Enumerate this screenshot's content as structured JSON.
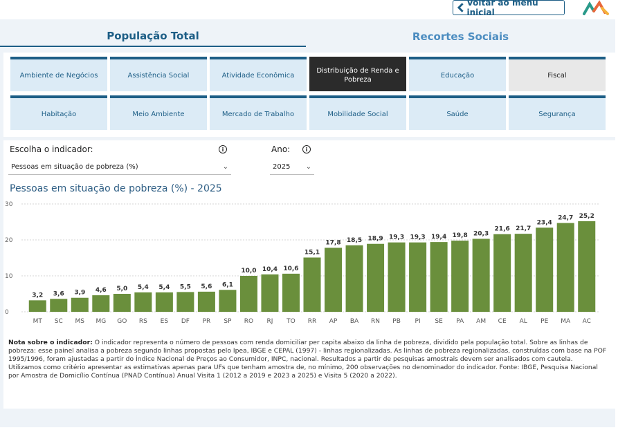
{
  "header": {
    "back_label": "Voltar ao menu inicial",
    "colors": {
      "primary": "#1d5e86",
      "bar": "#6a8f3c"
    }
  },
  "tabs": {
    "pop_label": "População Total",
    "rec_label": "Recortes Sociais"
  },
  "categories": [
    {
      "label": "Ambiente de Negócios"
    },
    {
      "label": "Assistência Social"
    },
    {
      "label": "Atividade Econômica"
    },
    {
      "label": "Distribuição de Renda e Pobreza",
      "selected": true
    },
    {
      "label": "Educação"
    },
    {
      "label": "Fiscal"
    },
    {
      "label": "Habitação"
    },
    {
      "label": "Meio Ambiente"
    },
    {
      "label": "Mercado de Trabalho"
    },
    {
      "label": "Mobilidade Social"
    },
    {
      "label": "Saúde"
    },
    {
      "label": "Segurança"
    }
  ],
  "filters": {
    "indicator_label": "Escolha o indicador:",
    "indicator_value": "Pessoas em situação de pobreza (%)",
    "year_label": "Ano:",
    "year_value": "2025"
  },
  "chart_data": {
    "type": "bar",
    "title": "Pessoas em situação de pobreza (%) - 2025",
    "categories": [
      "MT",
      "SC",
      "MS",
      "MG",
      "GO",
      "RS",
      "ES",
      "DF",
      "PR",
      "SP",
      "RO",
      "RJ",
      "TO",
      "RR",
      "AP",
      "BA",
      "RN",
      "PB",
      "PI",
      "SE",
      "PA",
      "AM",
      "CE",
      "AL",
      "PE",
      "MA",
      "AC"
    ],
    "values": [
      3.2,
      3.6,
      3.9,
      4.6,
      5.0,
      5.4,
      5.4,
      5.5,
      5.6,
      6.1,
      10.0,
      10.4,
      10.6,
      15.1,
      17.8,
      18.5,
      18.9,
      19.3,
      19.3,
      19.4,
      19.8,
      20.3,
      21.6,
      21.7,
      23.4,
      24.7,
      25.2
    ],
    "value_labels": [
      "3,2",
      "3,6",
      "3,9",
      "4,6",
      "5,0",
      "5,4",
      "5,4",
      "5,5",
      "5,6",
      "6,1",
      "10,0",
      "10,4",
      "10,6",
      "15,1",
      "17,8",
      "18,5",
      "18,9",
      "19,3",
      "19,3",
      "19,4",
      "19,8",
      "20,3",
      "21,6",
      "21,7",
      "23,4",
      "24,7",
      "25,2"
    ],
    "ylim": [
      0,
      30
    ],
    "yticks": [
      "0",
      "10",
      "20",
      "30"
    ],
    "grid": true
  },
  "note": {
    "label": "Nota sobre o indicador:",
    "text": " O indicador representa o número de pessoas com renda domiciliar per capita abaixo da linha de pobreza, dividido pela população total. Sobre as linhas de pobreza: esse painel analisa a pobreza segundo linhas propostas pelo Ipea, IBGE e CEPAL (1997) - linhas regionalizadas. As linhas de pobreza regionalizadas, construídas com base na POF 1995/1996, foram ajustadas a partir do Índice Nacional de Preços ao Consumidor, INPC, nacional. Resultados a partir de pesquisas amostrais devem ser analisados com cautela. Utilizamos como critério apresentar as estimativas apenas para UFs que tenham amostra de, no mínimo, 200 observações no denominador do indicador. Fonte: IBGE, Pesquisa Nacional por Amostra de Domicílio Contínua (PNAD Contínua) Anual Visita 1 (2012 a 2019 e 2023 a 2025) e Visita 5 (2020 a 2022)."
  }
}
